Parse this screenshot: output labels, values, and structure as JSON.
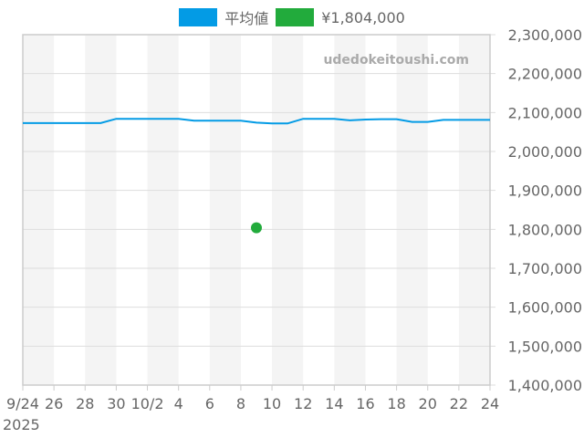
{
  "legend": [
    {
      "label": "平均値",
      "color": "#039be5"
    },
    {
      "label": "¥1,804,000",
      "color": "#22ab3c"
    }
  ],
  "watermark": "udedokeitoushi.com",
  "chart_data": {
    "type": "line",
    "title": "",
    "xlabel": "",
    "ylabel": "",
    "x_start_label": "9/24",
    "x_year_label": "2025",
    "x_tick_labels": [
      "9/24",
      "26",
      "28",
      "30",
      "10/2",
      "4",
      "6",
      "8",
      "10",
      "12",
      "14",
      "16",
      "18",
      "20",
      "22",
      "24"
    ],
    "y_tick_labels": [
      "2,300,000",
      "2,200,000",
      "2,100,000",
      "2,000,000",
      "1,900,000",
      "1,800,000",
      "1,700,000",
      "1,600,000",
      "1,500,000",
      "1,400,000"
    ],
    "ylim": [
      1400000,
      2300000
    ],
    "grid": true,
    "legend_position": "top",
    "series": [
      {
        "name": "平均値",
        "color": "#039be5",
        "x": [
          "9/24",
          "9/25",
          "9/26",
          "9/27",
          "9/28",
          "9/29",
          "9/30",
          "10/1",
          "10/2",
          "10/3",
          "10/4",
          "10/5",
          "10/6",
          "10/7",
          "10/8",
          "10/9",
          "10/10",
          "10/11",
          "10/12",
          "10/13",
          "10/14",
          "10/15",
          "10/16",
          "10/17",
          "10/18",
          "10/19",
          "10/20",
          "10/21",
          "10/22",
          "10/23",
          "10/24"
        ],
        "values": [
          2073000,
          2073000,
          2073000,
          2073000,
          2073000,
          2073000,
          2084000,
          2084000,
          2084000,
          2084000,
          2084000,
          2079000,
          2079000,
          2079000,
          2079000,
          2074000,
          2072000,
          2072000,
          2084000,
          2084000,
          2084000,
          2080000,
          2082000,
          2083000,
          2083000,
          2076000,
          2076000,
          2081000,
          2081000,
          2081000,
          2081000
        ]
      },
      {
        "name": "¥1,804,000",
        "color": "#22ab3c",
        "type": "scatter",
        "x": [
          "10/9"
        ],
        "values": [
          1804000
        ]
      }
    ]
  }
}
